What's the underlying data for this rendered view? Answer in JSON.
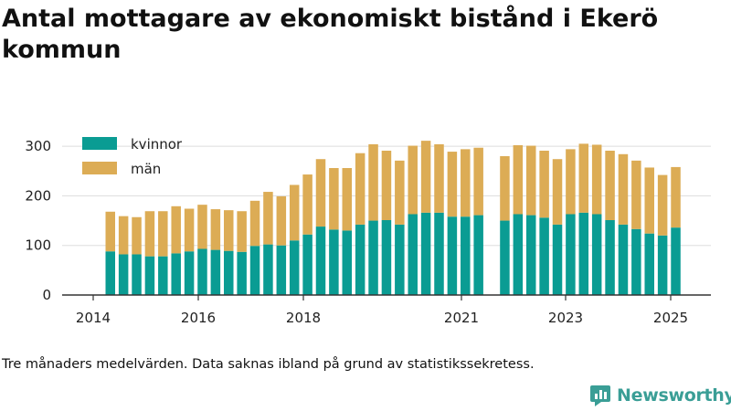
{
  "title": "Antal mottagare av ekonomiskt bistånd i Ekerö kommun",
  "footnote": "Tre månaders medelvärden. Data saknas ibland på grund av statistikssekretess.",
  "brand": {
    "name": "Newsworthy",
    "color": "#3a9e96",
    "icon": "newsworthy-logo-icon"
  },
  "colors": {
    "kvinnor": "#0a9c93",
    "man": "#dcac55",
    "grid": "#dddddd",
    "axis": "#333333"
  },
  "chart_data": {
    "type": "bar",
    "stacked": true,
    "x_ticks": [
      "2014",
      "2016",
      "2018",
      "2021",
      "2023",
      "2025"
    ],
    "y_ticks": [
      0,
      100,
      200,
      300
    ],
    "ylim": [
      0,
      320
    ],
    "grid": true,
    "legend_position": "top-left",
    "series": [
      {
        "name": "kvinnor",
        "values": [
          88,
          82,
          82,
          78,
          78,
          84,
          88,
          93,
          91,
          89,
          87,
          99,
          102,
          100,
          110,
          122,
          138,
          132,
          130,
          142,
          150,
          151,
          142,
          163,
          166,
          166,
          158,
          158,
          161,
          null,
          150,
          163,
          161,
          156,
          142,
          163,
          166,
          163,
          151,
          142,
          133,
          124,
          120,
          136
        ]
      },
      {
        "name": "män",
        "values": [
          80,
          77,
          75,
          91,
          91,
          95,
          86,
          89,
          82,
          82,
          82,
          91,
          106,
          99,
          112,
          121,
          136,
          124,
          126,
          144,
          154,
          140,
          129,
          138,
          145,
          138,
          131,
          136,
          136,
          null,
          130,
          139,
          140,
          135,
          132,
          131,
          139,
          140,
          140,
          142,
          138,
          133,
          122,
          122
        ]
      }
    ]
  }
}
